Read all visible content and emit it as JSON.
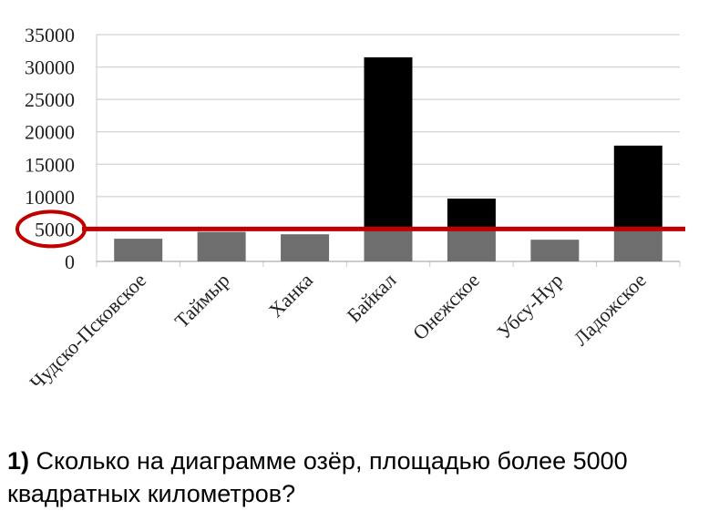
{
  "chart_data": {
    "type": "bar",
    "categories": [
      "Чудско-Псковское",
      "Таймыр",
      "Ханка",
      "Байкал",
      "Онежское",
      "Убсу-Нур",
      "Ладожское"
    ],
    "values": [
      3500,
      4560,
      4190,
      31500,
      9690,
      3350,
      17870
    ],
    "ylim": [
      0,
      35000
    ],
    "yticks": [
      0,
      5000,
      10000,
      15000,
      20000,
      25000,
      30000,
      35000
    ],
    "grid": true,
    "threshold": 5000,
    "colors": {
      "bar_low": "#6e6e6e",
      "bar_high": "#000000",
      "threshold_line": "#c00000",
      "highlight_circle": "#c00000",
      "grid": "#c8c8c8"
    }
  },
  "question": {
    "number": "1)",
    "text": "Сколько на диаграмме озёр, площадью более 5000 квадратных километров?"
  }
}
